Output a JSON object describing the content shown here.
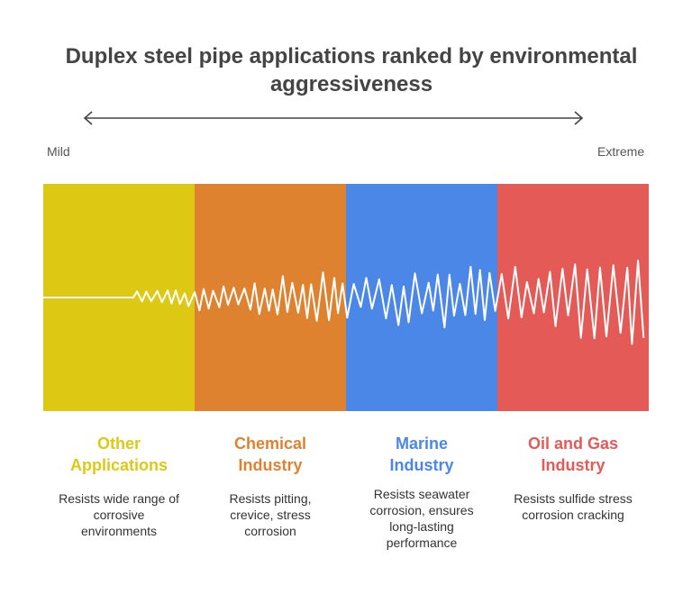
{
  "title": "Duplex steel pipe applications ranked by environmental aggressiveness",
  "scale": {
    "min_label": "Mild",
    "max_label": "Extreme"
  },
  "categories": [
    {
      "name": "Other Applications",
      "description": "Resists wide range of corrosive environments",
      "color": "#DDC914"
    },
    {
      "name": "Chemical Industry",
      "description": "Resists pitting, crevice, stress corrosion",
      "color": "#DF8230"
    },
    {
      "name": "Marine Industry",
      "description": "Resists seawater corrosion, ensures long-lasting performance",
      "color": "#4A87E6"
    },
    {
      "name": "Oil and Gas Industry",
      "description": "Resists sulfide stress corrosion cracking",
      "color": "#E45A56"
    }
  ]
}
